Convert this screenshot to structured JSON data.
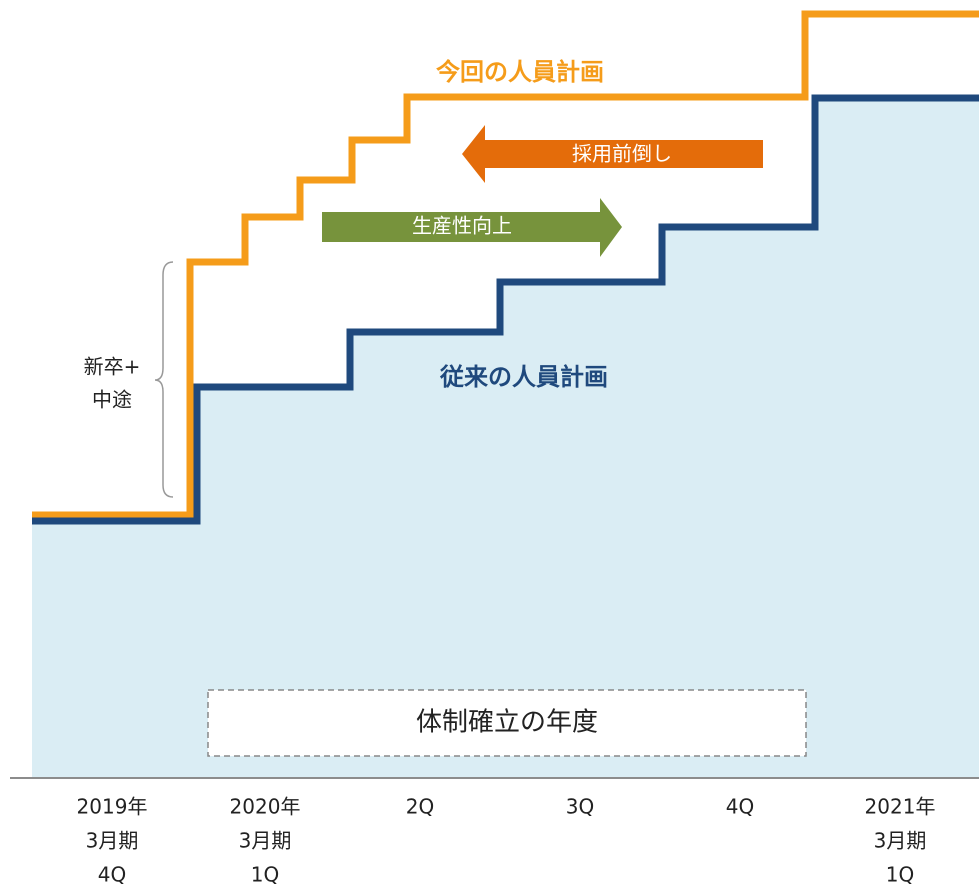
{
  "labels": {
    "new_plan": "今回の人員計画",
    "old_plan": "従来の人員計画",
    "advance_hiring": "採用前倒し",
    "productivity": "生産性向上",
    "hires": [
      "新卒+",
      "中途"
    ],
    "target_year": "体制確立の年度"
  },
  "x_labels": [
    [
      "2019年",
      "3月期",
      "4Q"
    ],
    [
      "2020年",
      "3月期",
      "1Q"
    ],
    [
      "2Q"
    ],
    [
      "3Q"
    ],
    [
      "4Q"
    ],
    [
      "2021年",
      "3月期",
      "1Q"
    ]
  ]
}
